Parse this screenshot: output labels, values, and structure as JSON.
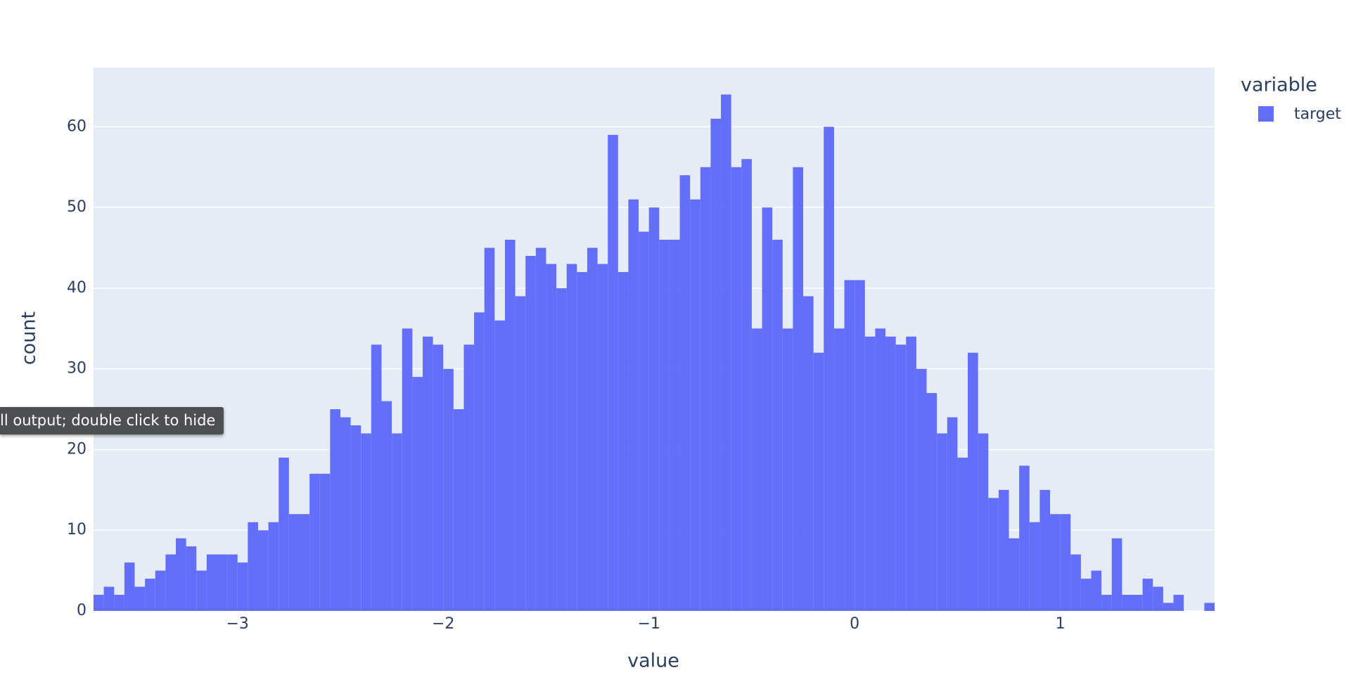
{
  "chart_data": {
    "type": "histogram",
    "xlabel": "value",
    "ylabel": "count",
    "legend_title": "variable",
    "series": [
      {
        "name": "target",
        "color": "#636efa",
        "values": [
          2,
          3,
          2,
          6,
          3,
          4,
          5,
          7,
          9,
          8,
          5,
          7,
          7,
          7,
          6,
          11,
          10,
          11,
          19,
          12,
          12,
          17,
          17,
          25,
          24,
          23,
          22,
          33,
          26,
          22,
          35,
          29,
          34,
          33,
          30,
          25,
          33,
          37,
          45,
          36,
          46,
          39,
          44,
          45,
          43,
          40,
          43,
          42,
          45,
          43,
          59,
          42,
          51,
          47,
          50,
          46,
          46,
          54,
          51,
          55,
          61,
          64,
          55,
          56,
          35,
          50,
          46,
          35,
          55,
          39,
          32,
          60,
          35,
          41,
          41,
          34,
          35,
          34,
          33,
          34,
          30,
          27,
          22,
          24,
          19,
          32,
          22,
          14,
          15,
          9,
          18,
          11,
          15,
          12,
          12,
          7,
          4,
          5,
          2,
          9,
          2,
          2,
          4,
          3,
          1,
          2,
          0,
          0,
          1
        ]
      }
    ],
    "bins": [
      -3.7,
      -3.65,
      -3.6,
      -3.55,
      -3.5,
      -3.45,
      -3.4,
      -3.35,
      -3.3,
      -3.25,
      -3.2,
      -3.15,
      -3.1,
      -3.05,
      -3,
      -2.95,
      -2.9,
      -2.85,
      -2.8,
      -2.75,
      -2.7,
      -2.65,
      -2.6,
      -2.55,
      -2.5,
      -2.45,
      -2.4,
      -2.35,
      -2.3,
      -2.25,
      -2.2,
      -2.15,
      -2.1,
      -2.05,
      -2,
      -1.95,
      -1.9,
      -1.85,
      -1.8,
      -1.75,
      -1.7,
      -1.65,
      -1.6,
      -1.55,
      -1.5,
      -1.45,
      -1.4,
      -1.35,
      -1.3,
      -1.25,
      -1.2,
      -1.15,
      -1.1,
      -1.05,
      -1,
      -0.95,
      -0.9,
      -0.85,
      -0.8,
      -0.75,
      -0.7,
      -0.65,
      -0.6,
      -0.55,
      -0.5,
      -0.45,
      -0.4,
      -0.35,
      -0.3,
      -0.25,
      -0.2,
      -0.15,
      -0.1,
      -0.05,
      0,
      0.05,
      0.1,
      0.15,
      0.2,
      0.25,
      0.3,
      0.35,
      0.4,
      0.45,
      0.5,
      0.55,
      0.6,
      0.65,
      0.7,
      0.75,
      0.8,
      0.85,
      0.9,
      0.95,
      1,
      1.05,
      1.1,
      1.15,
      1.2,
      1.25,
      1.3,
      1.35,
      1.4,
      1.45,
      1.5,
      1.55,
      1.6,
      1.65,
      1.7,
      1.75
    ],
    "xlim": [
      -3.7,
      1.75
    ],
    "xticks": [
      {
        "value": -3,
        "label": "−3"
      },
      {
        "value": -2,
        "label": "−2"
      },
      {
        "value": -1,
        "label": "−1"
      },
      0,
      1
    ],
    "ylim": [
      0,
      67.35
    ],
    "yticks": [
      0,
      10,
      20,
      30,
      40,
      50,
      60
    ],
    "grid": true,
    "plot_background": "#e5ecf6",
    "tooltip": "ll output; double click to hide"
  }
}
